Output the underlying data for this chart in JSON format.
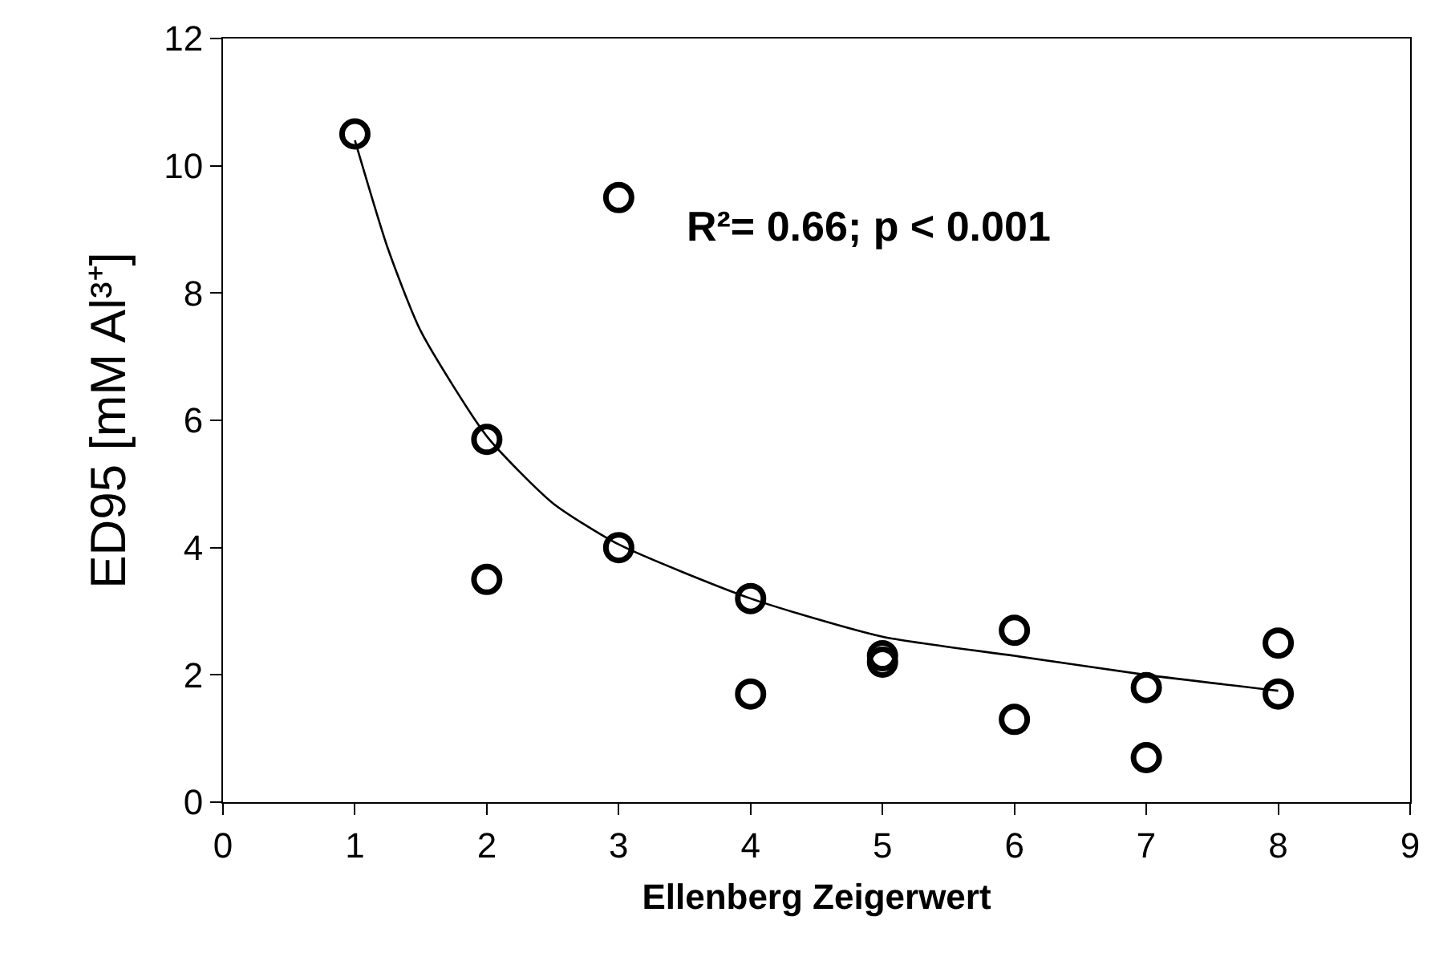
{
  "chart_data": {
    "type": "scatter",
    "xlabel": "Ellenberg Zeigerwert",
    "ylabel": "ED95 [mM Al³⁺]",
    "annotations": [
      "R²= 0.66; p < 0.001"
    ],
    "series": [
      {
        "color": "#000000",
        "marker": "circle",
        "x": [
          1,
          2,
          2,
          3,
          3,
          4,
          4,
          5,
          5,
          6,
          6,
          7,
          7,
          8,
          8
        ],
        "values": [
          10.5,
          5.7,
          3.5,
          9.5,
          4.0,
          3.2,
          1.7,
          2.3,
          2.2,
          2.7,
          1.3,
          1.8,
          0.7,
          2.5,
          1.7
        ]
      },
      {
        "type": "line",
        "color": "#000000",
        "line_style": "solid",
        "x": [
          1,
          1.25,
          1.5,
          2,
          2.5,
          3,
          4,
          5,
          6,
          7,
          8
        ],
        "values": [
          10.4,
          8.7,
          7.4,
          5.75,
          4.7,
          4.05,
          3.2,
          2.6,
          2.3,
          2.0,
          1.75
        ]
      }
    ],
    "xlim": [
      0,
      9
    ],
    "xticks": [
      0,
      1,
      2,
      3,
      4,
      5,
      6,
      7,
      8,
      9
    ],
    "ylim": [
      0,
      12
    ],
    "yticks": [
      0,
      2,
      4,
      6,
      8,
      10,
      12
    ],
    "legend": false
  }
}
